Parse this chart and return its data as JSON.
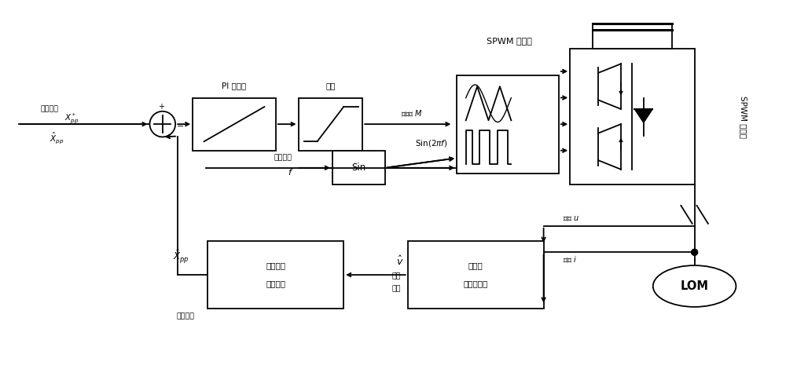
{
  "bg_color": "#ffffff",
  "line_color": "#000000",
  "figsize": [
    10.0,
    4.7
  ],
  "dpi": 100,
  "xlim": [
    0,
    100
  ],
  "ylim": [
    0,
    47
  ]
}
